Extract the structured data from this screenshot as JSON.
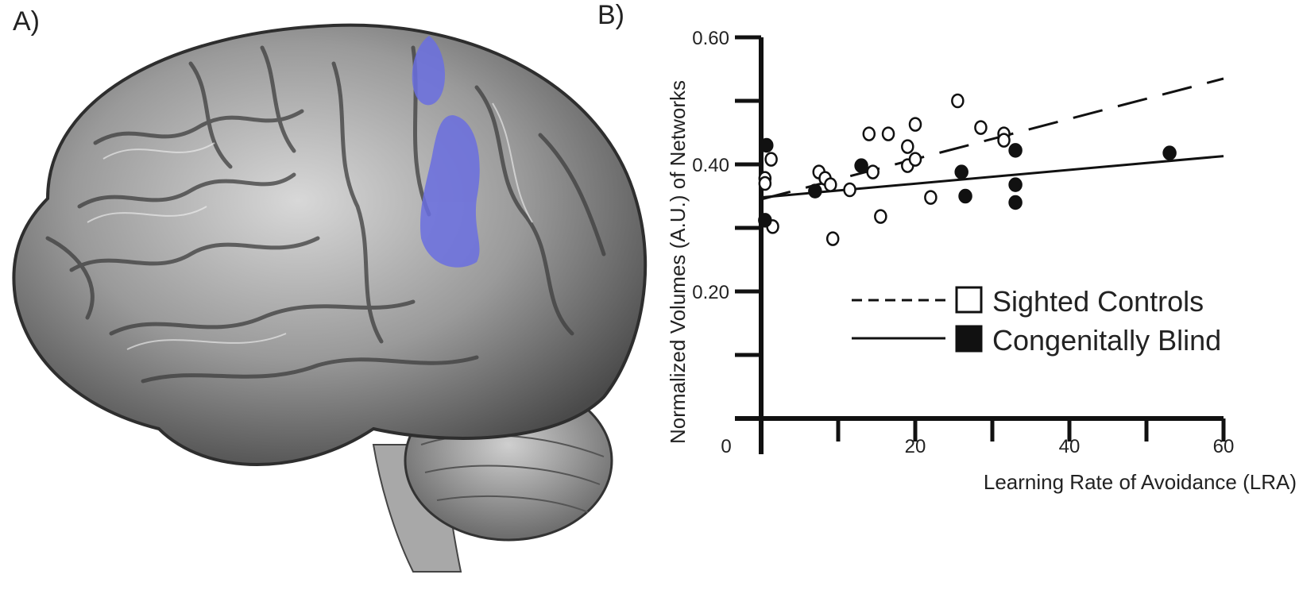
{
  "panels": {
    "a_label": "A)",
    "b_label": "B)"
  },
  "brain": {
    "fill_color": "#8c8c8c",
    "highlight_color": "#6a6ee0"
  },
  "chart_data": {
    "type": "scatter",
    "title": "",
    "xlabel": "Learning Rate of Avoidance (LRA)",
    "ylabel": "Normalized Volumes (A.U.) of Networks",
    "xlim": [
      0,
      60
    ],
    "ylim": [
      0,
      0.6
    ],
    "x_tick_labels": [
      {
        "value": 0,
        "label": "0"
      },
      {
        "value": 20,
        "label": "20"
      },
      {
        "value": 40,
        "label": "40"
      },
      {
        "value": 60,
        "label": "60"
      }
    ],
    "x_minor_ticks": [
      10,
      30,
      50
    ],
    "y_tick_labels": [
      {
        "value": 0.2,
        "label": "0.20"
      },
      {
        "value": 0.4,
        "label": "0.40"
      },
      {
        "value": 0.6,
        "label": "0.60"
      }
    ],
    "y_minor_ticks": [
      0.1,
      0.3,
      0.5
    ],
    "grid": false,
    "legend_position": "lower-right",
    "series": [
      {
        "name": "Sighted Controls",
        "marker": "open-circle",
        "line_style": "dashed",
        "trend": [
          [
            0,
            0.345
          ],
          [
            60,
            0.535
          ]
        ],
        "points": [
          [
            0.5,
            0.378
          ],
          [
            0.5,
            0.37
          ],
          [
            1.3,
            0.408
          ],
          [
            1.5,
            0.302
          ],
          [
            7.5,
            0.388
          ],
          [
            8.3,
            0.378
          ],
          [
            9.0,
            0.368
          ],
          [
            9.3,
            0.283
          ],
          [
            11.5,
            0.36
          ],
          [
            14.0,
            0.448
          ],
          [
            14.5,
            0.388
          ],
          [
            15.5,
            0.318
          ],
          [
            16.5,
            0.448
          ],
          [
            19.0,
            0.428
          ],
          [
            19.0,
            0.398
          ],
          [
            20.0,
            0.463
          ],
          [
            20.0,
            0.408
          ],
          [
            22.0,
            0.348
          ],
          [
            25.5,
            0.5
          ],
          [
            28.5,
            0.458
          ],
          [
            31.5,
            0.448
          ],
          [
            31.5,
            0.438
          ]
        ]
      },
      {
        "name": "Congenitally Blind",
        "marker": "filled-circle",
        "line_style": "solid",
        "trend": [
          [
            0,
            0.348
          ],
          [
            60,
            0.413
          ]
        ],
        "points": [
          [
            0.7,
            0.43
          ],
          [
            0.5,
            0.312
          ],
          [
            7.0,
            0.358
          ],
          [
            13.0,
            0.398
          ],
          [
            26.0,
            0.388
          ],
          [
            26.5,
            0.35
          ],
          [
            33.0,
            0.422
          ],
          [
            33.0,
            0.368
          ],
          [
            33.0,
            0.34
          ],
          [
            53.0,
            0.418
          ]
        ]
      }
    ]
  }
}
